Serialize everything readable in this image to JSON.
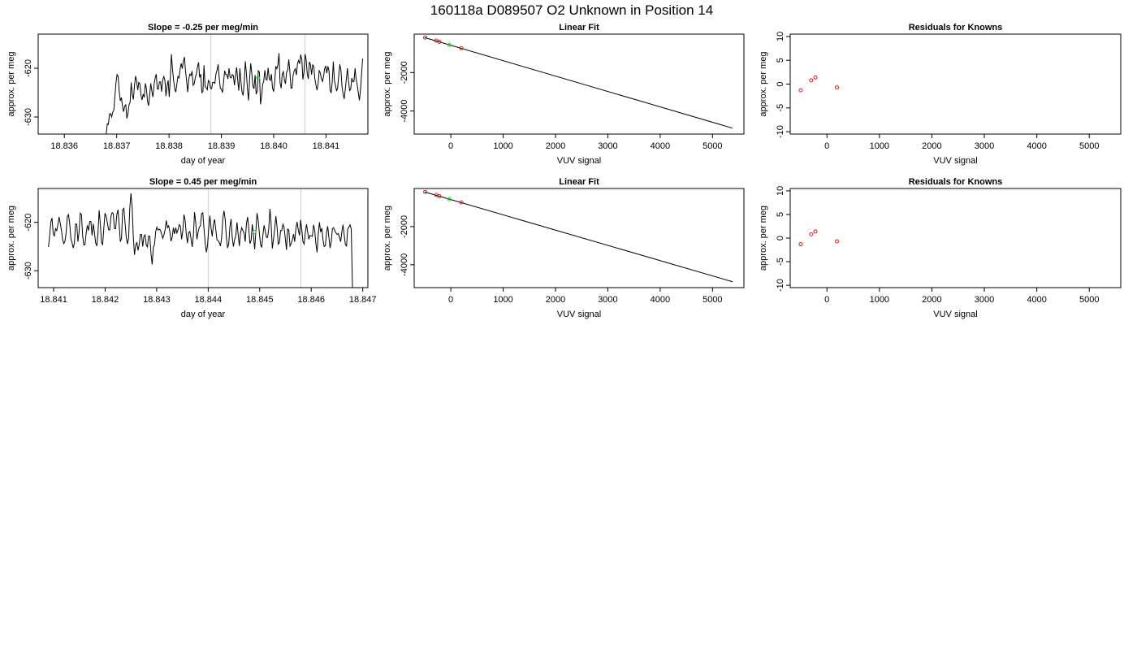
{
  "page": {
    "title": "160118a     D089507   O2 Unknown in Position  14"
  },
  "colors": {
    "line": "#000000",
    "known_point": "#cc2222",
    "unknown_point": "#22dd22",
    "window_line": "#cccccc",
    "frame": "#000000"
  },
  "chart_data": [
    {
      "type": "line",
      "title": "Slope =  -0.25  per meg/min",
      "xlabel": "day of year",
      "ylabel": "approx. per meg",
      "xlim": [
        18.8355,
        18.8418
      ],
      "ylim": [
        -633.5,
        -613.0
      ],
      "xticks": [
        18.836,
        18.837,
        18.838,
        18.839,
        18.84,
        18.841
      ],
      "xtick_labels": [
        "18.836",
        "18.837",
        "18.838",
        "18.839",
        "18.840",
        "18.841"
      ],
      "yticks": [
        -630,
        -620
      ],
      "ytick_labels": [
        "-630",
        "-620"
      ],
      "vlines": [
        18.8388,
        18.8406
      ],
      "highlight_point": {
        "x": 18.8397,
        "y": -622.0
      },
      "series": [
        {
          "x_start": 18.8368,
          "x_end": 18.8417,
          "y": [
            -633.5,
            -631.4,
            -631.5,
            -629.4,
            -629.3,
            -630.0,
            -629.0,
            -628.6,
            -625.8,
            -622.9,
            -621.3,
            -621.7,
            -624.9,
            -626.7,
            -626.0,
            -627.8,
            -628.9,
            -627.8,
            -627.5,
            -630.3,
            -629.3,
            -627.5,
            -627.0,
            -622.9,
            -625.4,
            -626.4,
            -623.6,
            -621.6,
            -622.6,
            -624.5,
            -622.9,
            -623.2,
            -625.6,
            -626.5,
            -625.3,
            -626.0,
            -623.1,
            -624.2,
            -626.7,
            -627.7,
            -625.4,
            -623.1,
            -624.7,
            -625.9,
            -623.4,
            -622.0,
            -621.2,
            -624.2,
            -624.3,
            -622.8,
            -622.8,
            -624.8,
            -622.4,
            -621.7,
            -622.4,
            -625.7,
            -623.6,
            -622.5,
            -625.9,
            -622.0,
            -617.1,
            -620.2,
            -622.4,
            -624.1,
            -624.9,
            -623.3,
            -621.7,
            -622.0,
            -620.2,
            -619.0,
            -620.1,
            -618.5,
            -617.7,
            -620.6,
            -622.6,
            -624.9,
            -622.2,
            -621.2,
            -621.5,
            -620.6,
            -623.5,
            -623.2,
            -621.9,
            -621.2,
            -619.7,
            -618.8,
            -621.9,
            -621.2,
            -625.0,
            -624.8,
            -619.4,
            -623.7,
            -624.0,
            -624.4,
            -622.5,
            -622.8,
            -624.1,
            -624.2,
            -622.9,
            -622.9,
            -623.1,
            -621.1,
            -620.4,
            -619.2,
            -621.9,
            -624.1,
            -624.3,
            -625.0,
            -622.8,
            -620.5,
            -621.3,
            -621.3,
            -622.2,
            -620.0,
            -621.8,
            -622.0,
            -621.3,
            -621.5,
            -623.5,
            -621.5,
            -619.8,
            -622.4,
            -624.6,
            -620.0,
            -622.8,
            -624.9,
            -625.6,
            -622.8,
            -618.6,
            -621.0,
            -624.3,
            -626.6,
            -622.0,
            -619.0,
            -621.1,
            -623.7,
            -624.2,
            -621.4,
            -625.3,
            -624.7,
            -620.5,
            -620.8,
            -627.4,
            -625.8,
            -623.3,
            -622.6,
            -620.4,
            -622.3,
            -622.4,
            -619.9,
            -622.1,
            -622.5,
            -621.2,
            -624.0,
            -624.8,
            -623.0,
            -619.6,
            -620.1,
            -619.3,
            -616.9,
            -623.0,
            -624.1,
            -621.2,
            -620.7,
            -622.4,
            -623.2,
            -620.8,
            -620.4,
            -618.2,
            -620.6,
            -624.0,
            -624.1,
            -621.4,
            -620.5,
            -620.1,
            -621.4,
            -619.1,
            -618.4,
            -619.1,
            -617.2,
            -618.2,
            -622.3,
            -620.7,
            -617.1,
            -618.3,
            -621.1,
            -622.2,
            -618.7,
            -619.3,
            -621.3,
            -619.3,
            -619.6,
            -622.2,
            -623.4,
            -624.5,
            -623.2,
            -620.5,
            -620.9,
            -622.1,
            -622.7,
            -621.7,
            -620.1,
            -619.5,
            -621.0,
            -619.6,
            -620.5,
            -624.4,
            -625.1,
            -622.7,
            -618.6,
            -622.6,
            -623.5,
            -624.7,
            -624.0,
            -621.4,
            -619.2,
            -620.4,
            -623.8,
            -625.3,
            -626.3,
            -624.3,
            -622.2,
            -620.0,
            -622.6,
            -624.6,
            -624.3,
            -622.0,
            -622.8,
            -622.7,
            -620.0,
            -622.3,
            -623.4,
            -625.0,
            -626.6,
            -624.4,
            -621.1,
            -618.0
          ]
        }
      ]
    },
    {
      "type": "scatter",
      "title": "Linear Fit",
      "xlabel": "VUV signal",
      "ylabel": "approx. per meg",
      "xlim": [
        -700,
        5600
      ],
      "ylim": [
        -5200,
        0
      ],
      "xticks": [
        0,
        1000,
        2000,
        3000,
        4000,
        5000
      ],
      "xtick_labels": [
        "0",
        "1000",
        "2000",
        "3000",
        "4000",
        "5000"
      ],
      "yticks": [
        -4000,
        -2000
      ],
      "ytick_labels": [
        "-4000",
        "-2000"
      ],
      "fit_line": {
        "x": [
          -500,
          5380
        ],
        "y": [
          -180,
          -4890
        ]
      },
      "known_points": {
        "x": [
          -490,
          -280,
          -220,
          200
        ],
        "y": [
          -180,
          -340,
          -400,
          -730
        ]
      },
      "unknown_points": {
        "x": [
          -30
        ],
        "y": [
          -560
        ]
      }
    },
    {
      "type": "scatter",
      "title": "Residuals for Knowns",
      "xlabel": "VUV signal",
      "ylabel": "approx. per meg",
      "xlim": [
        -700,
        5600
      ],
      "ylim": [
        -10.5,
        10.5
      ],
      "xticks": [
        0,
        1000,
        2000,
        3000,
        4000,
        5000
      ],
      "xtick_labels": [
        "0",
        "1000",
        "2000",
        "3000",
        "4000",
        "5000"
      ],
      "yticks": [
        -10,
        -5,
        0,
        5,
        10
      ],
      "ytick_labels": [
        "-10",
        "-5",
        "0",
        "5",
        "10"
      ],
      "known_points": {
        "x": [
          -500,
          -300,
          -220,
          190
        ],
        "y": [
          -1.3,
          0.8,
          1.4,
          -0.7
        ]
      }
    },
    {
      "type": "line",
      "title": "Slope =  0.45  per meg/min",
      "xlabel": "day of year",
      "ylabel": "approx. per meg",
      "xlim": [
        18.8407,
        18.8471
      ],
      "ylim": [
        -633.5,
        -613.0
      ],
      "xticks": [
        18.841,
        18.842,
        18.843,
        18.844,
        18.845,
        18.846,
        18.847
      ],
      "xtick_labels": [
        "18.841",
        "18.842",
        "18.843",
        "18.844",
        "18.845",
        "18.846",
        "18.847"
      ],
      "yticks": [
        -630,
        -620
      ],
      "ytick_labels": [
        "-630",
        "-620"
      ],
      "vlines": [
        18.844,
        18.8458
      ],
      "highlight_point": {
        "x": 18.8449,
        "y": -622.0
      },
      "series": [
        {
          "x_start": 18.8409,
          "x_end": 18.8468,
          "y": [
            -625.1,
            -622.8,
            -619.9,
            -619.1,
            -622.3,
            -622.8,
            -621.3,
            -621.7,
            -620.5,
            -618.9,
            -620.2,
            -621.6,
            -623.6,
            -624.4,
            -623.9,
            -622.1,
            -618.8,
            -618.4,
            -620.2,
            -623.3,
            -624.2,
            -625.3,
            -624.3,
            -620.3,
            -620.4,
            -624.0,
            -621.9,
            -618.1,
            -618.4,
            -622.8,
            -624.7,
            -624.6,
            -622.2,
            -620.6,
            -621.7,
            -619.8,
            -619.8,
            -622.7,
            -620.3,
            -622.1,
            -624.2,
            -624.9,
            -622.3,
            -617.5,
            -620.3,
            -624.2,
            -624.6,
            -621.1,
            -618.1,
            -618.8,
            -620.1,
            -621.5,
            -621.6,
            -618.8,
            -618.0,
            -618.2,
            -621.3,
            -621.3,
            -618.4,
            -617.4,
            -620.4,
            -624.0,
            -623.3,
            -617.4,
            -617.1,
            -620.1,
            -623.0,
            -624.5,
            -623.3,
            -617.1,
            -614.0,
            -616.8,
            -623.0,
            -626.7,
            -624.8,
            -624.1,
            -625.8,
            -624.6,
            -622.5,
            -622.5,
            -625.0,
            -622.9,
            -622.6,
            -624.7,
            -625.1,
            -622.8,
            -622.9,
            -626.4,
            -628.7,
            -625.2,
            -624.6,
            -621.9,
            -621.0,
            -621.6,
            -621.4,
            -621.6,
            -622.4,
            -623.3,
            -622.6,
            -621.5,
            -619.6,
            -621.1,
            -620.7,
            -621.9,
            -623.9,
            -623.1,
            -621.1,
            -622.4,
            -621.1,
            -622.2,
            -621.5,
            -620.5,
            -620.8,
            -623.5,
            -621.8,
            -618.4,
            -619.6,
            -622.5,
            -624.3,
            -622.1,
            -621.9,
            -623.4,
            -625.1,
            -622.7,
            -617.9,
            -620.1,
            -623.5,
            -622.0,
            -621.0,
            -620.7,
            -618.2,
            -618.0,
            -621.3,
            -624.2,
            -626.2,
            -624.8,
            -621.3,
            -618.6,
            -621.2,
            -622.9,
            -620.4,
            -619.4,
            -621.5,
            -623.6,
            -623.8,
            -624.2,
            -624.9,
            -623.1,
            -619.2,
            -617.6,
            -619.4,
            -623.1,
            -625.3,
            -624.5,
            -620.9,
            -619.3,
            -623.2,
            -625.0,
            -623.5,
            -622.8,
            -620.0,
            -622.5,
            -624.9,
            -622.2,
            -621.1,
            -621.7,
            -622.2,
            -624.0,
            -620.3,
            -618.9,
            -621.3,
            -624.4,
            -623.7,
            -620.4,
            -622.7,
            -625.6,
            -622.0,
            -618.1,
            -619.6,
            -622.2,
            -624.6,
            -625.2,
            -622.6,
            -620.6,
            -621.8,
            -623.1,
            -623.1,
            -621.2,
            -617.2,
            -620.5,
            -625.4,
            -623.5,
            -621.4,
            -618.7,
            -620.9,
            -624.5,
            -624.2,
            -621.7,
            -621.7,
            -620.4,
            -621.1,
            -623.3,
            -625.7,
            -621.4,
            -621.6,
            -624.9,
            -624.4,
            -623.6,
            -622.4,
            -624.0,
            -621.3,
            -619.9,
            -621.5,
            -622.7,
            -619.5,
            -621.5,
            -624.0,
            -624.5,
            -622.1,
            -620.4,
            -622.0,
            -623.5,
            -622.7,
            -622.8,
            -622.9,
            -620.5,
            -621.7,
            -624.5,
            -626.2,
            -622.3,
            -620.0,
            -622.0,
            -621.2,
            -623.6,
            -625.0,
            -624.8,
            -622.1,
            -620.8,
            -623.1,
            -625.3,
            -624.0,
            -621.3,
            -621.1,
            -621.7,
            -622.2,
            -622.5,
            -622.3,
            -623.1,
            -624.0,
            -622.0,
            -620.5,
            -622.6,
            -624.6,
            -624.9,
            -621.3,
            -621.0,
            -620.5,
            -621.4,
            -633.5
          ]
        }
      ]
    },
    {
      "type": "scatter",
      "title": "Linear Fit",
      "xlabel": "VUV signal",
      "ylabel": "approx. per meg",
      "xlim": [
        -700,
        5600
      ],
      "ylim": [
        -5200,
        0
      ],
      "xticks": [
        0,
        1000,
        2000,
        3000,
        4000,
        5000
      ],
      "xtick_labels": [
        "0",
        "1000",
        "2000",
        "3000",
        "4000",
        "5000"
      ],
      "yticks": [
        -4000,
        -2000
      ],
      "ytick_labels": [
        "-4000",
        "-2000"
      ],
      "fit_line": {
        "x": [
          -500,
          5380
        ],
        "y": [
          -180,
          -4890
        ]
      },
      "known_points": {
        "x": [
          -490,
          -280,
          -220,
          200
        ],
        "y": [
          -180,
          -340,
          -400,
          -730
        ]
      },
      "unknown_points": {
        "x": [
          -30
        ],
        "y": [
          -560
        ]
      }
    },
    {
      "type": "scatter",
      "title": "Residuals for Knowns",
      "xlabel": "VUV signal",
      "ylabel": "approx. per meg",
      "xlim": [
        -700,
        5600
      ],
      "ylim": [
        -10.5,
        10.5
      ],
      "xticks": [
        0,
        1000,
        2000,
        3000,
        4000,
        5000
      ],
      "xtick_labels": [
        "0",
        "1000",
        "2000",
        "3000",
        "4000",
        "5000"
      ],
      "yticks": [
        -10,
        -5,
        0,
        5,
        10
      ],
      "ytick_labels": [
        "-10",
        "-5",
        "0",
        "5",
        "10"
      ],
      "known_points": {
        "x": [
          -500,
          -300,
          -220,
          190
        ],
        "y": [
          -1.3,
          0.8,
          1.4,
          -0.7
        ]
      }
    }
  ]
}
